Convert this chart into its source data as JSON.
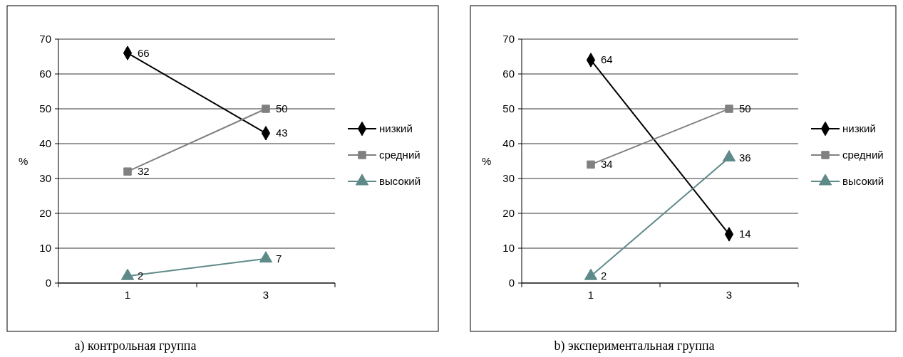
{
  "chart_data": [
    {
      "type": "line",
      "categories": [
        "1",
        "3"
      ],
      "ylabel": "%",
      "ylim": [
        0,
        70
      ],
      "yticks": [
        0,
        10,
        20,
        30,
        40,
        50,
        60,
        70
      ],
      "grid": "y",
      "legend": "right",
      "data_labels": true,
      "annotations": [
        "a) контрольная группа"
      ],
      "series": [
        {
          "name": "низкий",
          "color": "#000000",
          "marker": "diamond",
          "values": [
            66,
            43
          ]
        },
        {
          "name": "средний",
          "color": "#808080",
          "marker": "square",
          "values": [
            32,
            50
          ]
        },
        {
          "name": "высокий",
          "color": "#5f8a8a",
          "marker": "triangle",
          "values": [
            2,
            7
          ]
        }
      ]
    },
    {
      "type": "line",
      "categories": [
        "1",
        "3"
      ],
      "ylabel": "%",
      "ylim": [
        0,
        70
      ],
      "yticks": [
        0,
        10,
        20,
        30,
        40,
        50,
        60,
        70
      ],
      "grid": "y",
      "legend": "right",
      "data_labels": true,
      "annotations": [
        "b) экспериментальная группа"
      ],
      "series": [
        {
          "name": "низкий",
          "color": "#000000",
          "marker": "diamond",
          "values": [
            64,
            14
          ]
        },
        {
          "name": "средний",
          "color": "#808080",
          "marker": "square",
          "values": [
            34,
            50
          ]
        },
        {
          "name": "высокий",
          "color": "#5f8a8a",
          "marker": "triangle",
          "values": [
            2,
            36
          ]
        }
      ]
    }
  ]
}
